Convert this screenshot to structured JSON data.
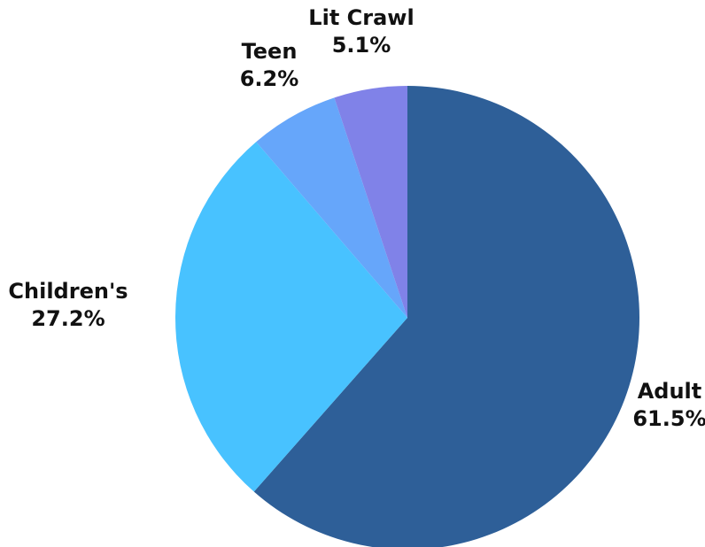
{
  "chart_data": {
    "type": "pie",
    "title": "",
    "start_angle_deg": 0,
    "direction": "clockwise",
    "slices": [
      {
        "name": "Adult",
        "label": "Adult",
        "value": 61.5,
        "value_label": "61.5%",
        "color": "#2e5f98"
      },
      {
        "name": "Children's",
        "label": "Children's",
        "value": 27.2,
        "value_label": "27.2%",
        "color": "#48c2ff"
      },
      {
        "name": "Teen",
        "label": "Teen",
        "value": 6.2,
        "value_label": "6.2%",
        "color": "#66a6fa"
      },
      {
        "name": "Lit Crawl",
        "label": "Lit Crawl",
        "value": 5.1,
        "value_label": "5.1%",
        "color": "#8082e8"
      }
    ],
    "legend": "none",
    "data_labels": "outside"
  }
}
